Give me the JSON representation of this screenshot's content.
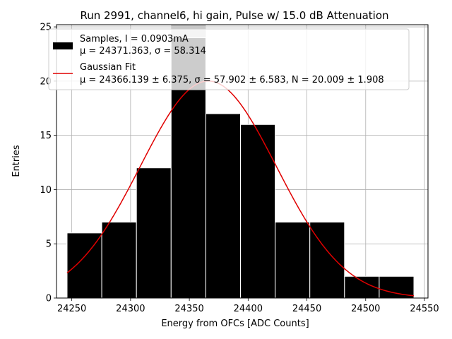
{
  "chart_data": {
    "type": "bar",
    "title": "Run 2991, channel6, hi gain, Pulse w/ 15.0 dB Attenuation",
    "xlabel": "Energy from OFCs [ADC Counts]",
    "ylabel": "Entries",
    "xlim": [
      24237,
      24553
    ],
    "ylim": [
      0,
      25.2
    ],
    "xticks": [
      24250,
      24300,
      24350,
      24400,
      24450,
      24500,
      24550
    ],
    "yticks": [
      0,
      5,
      10,
      15,
      20,
      25
    ],
    "xtick_labels": [
      "24250",
      "24300",
      "24350",
      "24400",
      "24450",
      "24500",
      "24550"
    ],
    "ytick_labels": [
      "0",
      "5",
      "10",
      "15",
      "20",
      "25"
    ],
    "grid": true,
    "legend_position": "top-left",
    "histogram": {
      "bin_edges": [
        24246,
        24275.5,
        24305,
        24334.5,
        24364,
        24393.5,
        24423,
        24452.5,
        24482,
        24511.5,
        24541
      ],
      "counts": [
        6,
        7,
        12,
        24,
        17,
        16,
        7,
        7,
        2,
        2
      ],
      "color": "#000000",
      "highlight_bin_index": 3,
      "highlight_color": "#c8c8c8"
    },
    "fit": {
      "mu": 24366.139,
      "sigma": 57.902,
      "amplitude": 20.009,
      "x_start": 24246,
      "x_end": 24541,
      "color": "#e00000"
    },
    "legend": [
      {
        "label_line1": "Samples, I = 0.0903mA",
        "label_line2": "μ = 24371.363, σ = 58.314"
      },
      {
        "label_line1": "Gaussian Fit",
        "label_line2": "μ = 24366.139 ± 6.375, σ = 57.902 ± 6.583, N = 20.009 ± 1.908"
      }
    ]
  }
}
